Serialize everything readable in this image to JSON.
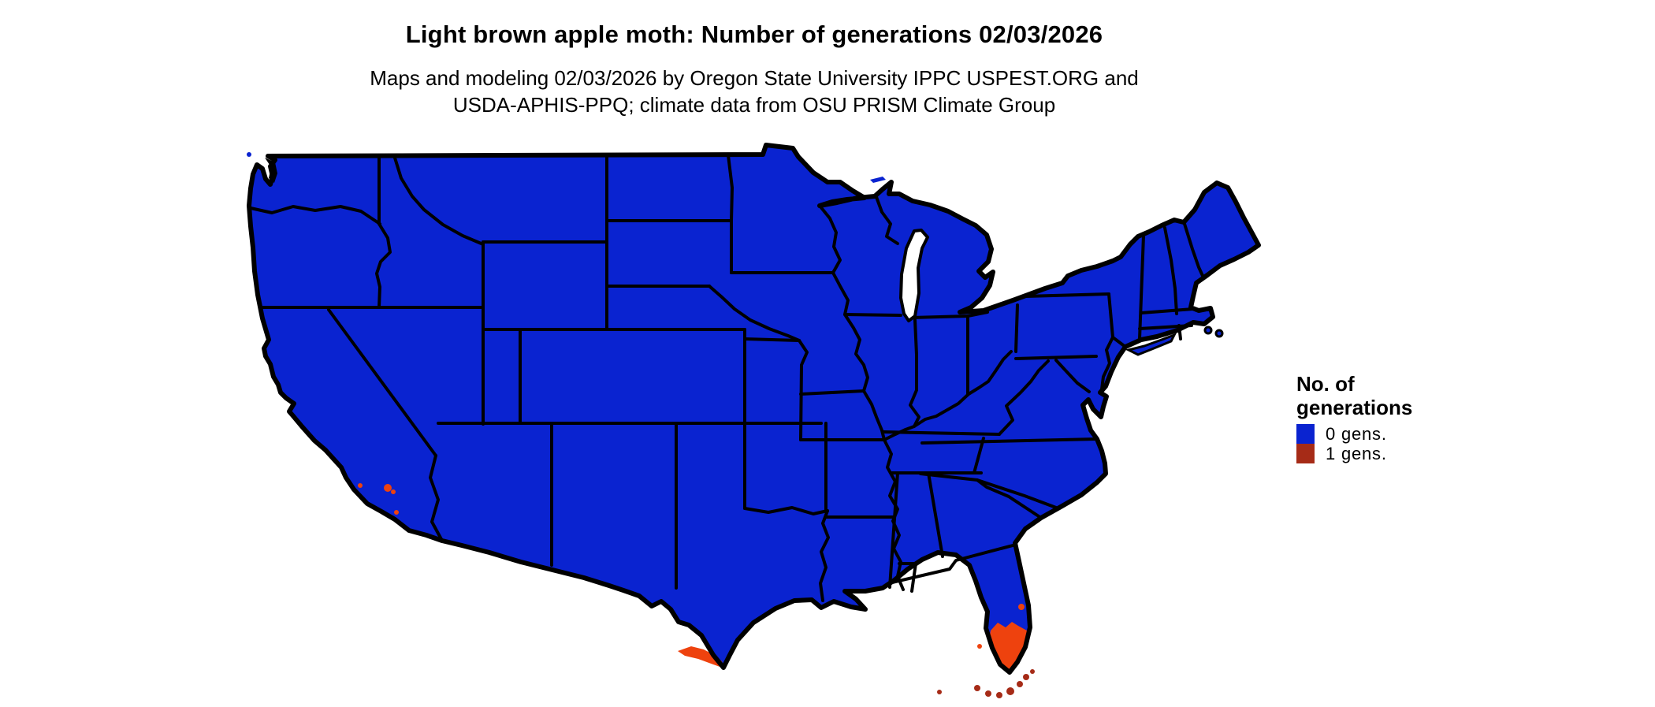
{
  "header": {
    "title": "Light brown apple moth: Number of generations 02/03/2026",
    "subtitle_line1": "Maps and modeling 02/03/2026 by Oregon State University IPPC USPEST.ORG and",
    "subtitle_line2": "USDA-APHIS-PPQ; climate data from OSU PRISM Climate Group"
  },
  "legend": {
    "title_line1": "No. of",
    "title_line2": "generations",
    "items": [
      {
        "label": "0 gens.",
        "color": "#0a23d0"
      },
      {
        "label": "1 gens.",
        "color": "#a62b17"
      }
    ]
  },
  "colors": {
    "blue": "#0a23d0",
    "orange": "#ee420e",
    "dkred": "#a62b17",
    "border": "#000000",
    "background": "#ffffff"
  },
  "map_data": {
    "type": "choropleth-map",
    "region": "Contiguous United States with state boundaries",
    "variable": "Number of light brown apple moth generations as of 02/03/2026",
    "classes": [
      {
        "value": "0 gens.",
        "color": "#0a23d0",
        "areas": "nearly all of the contiguous United States"
      },
      {
        "value": "1 gens.",
        "color": "#a62b17",
        "areas": "Florida Keys and far-south coastal fringes"
      }
    ],
    "highlighted_areas": [
      {
        "area": "southern Florida peninsula",
        "color": "#ee420e"
      },
      {
        "area": "southern tip of Texas (Rio Grande Valley)",
        "color": "#ee420e"
      },
      {
        "area": "small coastal spots in southern California",
        "color": "#ee420e"
      },
      {
        "area": "Florida Keys",
        "color": "#a62b17"
      }
    ]
  }
}
